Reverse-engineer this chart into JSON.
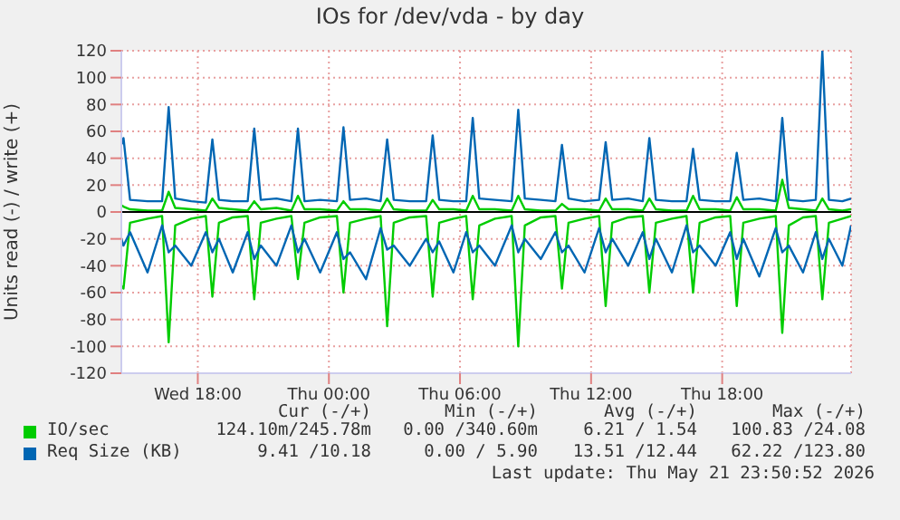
{
  "chart_data": {
    "type": "line",
    "title": "IOs for /dev/vda - by day",
    "ylabel": "Units read (-) / write (+)",
    "x": [
      "2026-05-20T14:30",
      "2026-05-20T14:36",
      "2026-05-20T14:54",
      "2026-05-20T15:42",
      "2026-05-20T16:22",
      "2026-05-20T16:40",
      "2026-05-20T16:58",
      "2026-05-20T17:42",
      "2026-05-20T18:22",
      "2026-05-20T18:40",
      "2026-05-20T18:58",
      "2026-05-20T19:36",
      "2026-05-20T20:17",
      "2026-05-20T20:35",
      "2026-05-20T20:53",
      "2026-05-20T21:36",
      "2026-05-20T22:17",
      "2026-05-20T22:35",
      "2026-05-20T22:53",
      "2026-05-20T23:36",
      "2026-05-21T00:22",
      "2026-05-21T00:40",
      "2026-05-21T00:58",
      "2026-05-21T01:42",
      "2026-05-21T02:22",
      "2026-05-21T02:40",
      "2026-05-21T02:58",
      "2026-05-21T03:42",
      "2026-05-21T04:27",
      "2026-05-21T04:45",
      "2026-05-21T05:03",
      "2026-05-21T05:42",
      "2026-05-21T06:17",
      "2026-05-21T06:35",
      "2026-05-21T06:53",
      "2026-05-21T07:36",
      "2026-05-21T08:22",
      "2026-05-21T08:40",
      "2026-05-21T08:58",
      "2026-05-21T09:42",
      "2026-05-21T10:22",
      "2026-05-21T10:40",
      "2026-05-21T10:58",
      "2026-05-21T11:42",
      "2026-05-21T12:22",
      "2026-05-21T12:40",
      "2026-05-21T12:58",
      "2026-05-21T13:42",
      "2026-05-21T14:22",
      "2026-05-21T14:40",
      "2026-05-21T14:58",
      "2026-05-21T15:42",
      "2026-05-21T16:22",
      "2026-05-21T16:40",
      "2026-05-21T16:58",
      "2026-05-21T17:42",
      "2026-05-21T18:22",
      "2026-05-21T18:40",
      "2026-05-21T18:58",
      "2026-05-21T19:42",
      "2026-05-21T20:27",
      "2026-05-21T20:45",
      "2026-05-21T21:03",
      "2026-05-21T21:42",
      "2026-05-21T22:17",
      "2026-05-21T22:35",
      "2026-05-21T22:53",
      "2026-05-21T23:30",
      "2026-05-21T23:54"
    ],
    "series": [
      {
        "color": "#00cc00",
        "values": [
          -55,
          -57,
          -8,
          -5,
          -3,
          -97,
          -10,
          -5,
          -3,
          -63,
          -8,
          -4,
          -3,
          -65,
          -8,
          -5,
          -3,
          -50,
          -8,
          -4,
          -3,
          -60,
          -8,
          -5,
          -3,
          -85,
          -8,
          -4,
          -3,
          -63,
          -8,
          -5,
          -3,
          -65,
          -10,
          -5,
          -3,
          -100,
          -10,
          -4,
          -3,
          -57,
          -8,
          -5,
          -3,
          -70,
          -8,
          -4,
          -3,
          -60,
          -8,
          -5,
          -3,
          -60,
          -8,
          -4,
          -3,
          -70,
          -8,
          -5,
          -3,
          -90,
          -10,
          -4,
          -3,
          -65,
          -8,
          -5,
          -3
        ]
      },
      {
        "color": "#0066b3",
        "values": [
          -20,
          -25,
          -15,
          -45,
          -10,
          -30,
          -25,
          -40,
          -15,
          -30,
          -20,
          -45,
          -15,
          -35,
          -25,
          -40,
          -10,
          -30,
          -20,
          -45,
          -15,
          -35,
          -30,
          -50,
          -12,
          -28,
          -25,
          -40,
          -20,
          -30,
          -22,
          -45,
          -15,
          -30,
          -25,
          -40,
          -10,
          -30,
          -20,
          -35,
          -15,
          -30,
          -25,
          -45,
          -12,
          -30,
          -20,
          -40,
          -15,
          -35,
          -20,
          -45,
          -10,
          -30,
          -25,
          -40,
          -15,
          -35,
          -20,
          -48,
          -12,
          -30,
          -25,
          -45,
          -15,
          -35,
          -20,
          -40,
          -10
        ]
      },
      {
        "name": "IO/sec",
        "color": "#00cc00",
        "values": [
          5,
          4,
          2,
          1,
          1,
          15,
          3,
          2,
          1,
          10,
          3,
          2,
          1,
          8,
          2,
          3,
          1,
          12,
          2,
          2,
          1,
          8,
          2,
          2,
          1,
          10,
          2,
          1,
          1,
          9,
          2,
          2,
          1,
          12,
          2,
          2,
          1,
          12,
          2,
          1,
          1,
          6,
          2,
          2,
          1,
          10,
          2,
          2,
          1,
          10,
          2,
          1,
          1,
          12,
          2,
          2,
          1,
          11,
          2,
          2,
          1,
          24,
          3,
          2,
          1,
          10,
          2,
          1,
          2
        ]
      },
      {
        "name": "Req Size (KB)",
        "color": "#0066b3",
        "values": [
          50,
          55,
          9,
          8,
          8,
          78,
          10,
          8,
          7,
          54,
          9,
          8,
          8,
          62,
          9,
          10,
          8,
          62,
          8,
          9,
          8,
          63,
          9,
          10,
          8,
          54,
          9,
          8,
          8,
          57,
          9,
          8,
          8,
          70,
          10,
          9,
          8,
          76,
          10,
          9,
          8,
          50,
          10,
          8,
          9,
          52,
          9,
          10,
          8,
          55,
          9,
          8,
          8,
          47,
          9,
          8,
          8,
          44,
          9,
          10,
          8,
          70,
          9,
          8,
          9,
          120,
          9,
          8,
          10
        ]
      }
    ],
    "xlim": [
      "2026-05-20T14:30",
      "2026-05-21T23:54"
    ],
    "xticks": [
      {
        "value": "2026-05-20T18:00",
        "label": "Wed 18:00"
      },
      {
        "value": "2026-05-21T00:00",
        "label": "Thu 00:00"
      },
      {
        "value": "2026-05-21T06:00",
        "label": "Thu 06:00"
      },
      {
        "value": "2026-05-21T12:00",
        "label": "Thu 12:00"
      },
      {
        "value": "2026-05-21T18:00",
        "label": "Thu 18:00"
      }
    ],
    "ylim": [
      -120,
      120
    ],
    "yticks": [
      -120,
      -100,
      -80,
      -60,
      -40,
      -20,
      0,
      20,
      40,
      60,
      80,
      100,
      120
    ],
    "ref_lines": [
      {
        "axis": "y",
        "value": 0,
        "color": "#000000"
      }
    ],
    "grid": true,
    "legend": "bottom",
    "marker": "none",
    "line_style": "solid",
    "annotations": [
      "Cur (-/+)",
      "Min (-/+)",
      "Avg (-/+)",
      "Max (-/+)",
      "124.10m/245.78m",
      "0.00 /340.60m",
      "6.21 / 1.54",
      "100.83 /24.08",
      "9.41 /10.18",
      "0.00 / 5.90",
      "13.51 /12.44",
      "62.22 /123.80",
      "Last update: Thu May 21 23:50:52 2026"
    ]
  }
}
